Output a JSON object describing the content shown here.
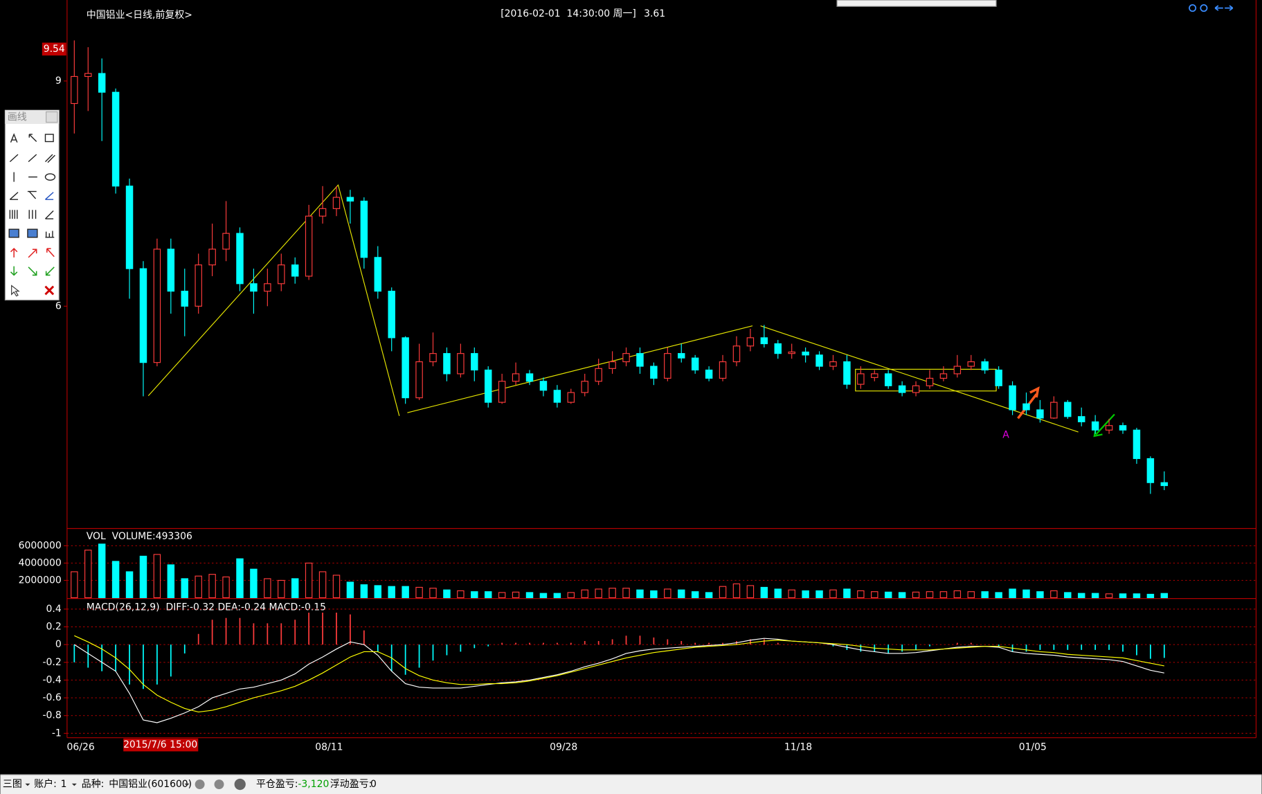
{
  "header": {
    "datetime": "[2016-02-01  14:30:00 周一]",
    "price": "3.61"
  },
  "toolbar": {
    "title": "画线"
  },
  "status_bar": {
    "layout": "三图",
    "account_label": "账户:",
    "account": "1",
    "symbol_label": "品种:",
    "symbol": "中国铝业(601600)",
    "closed_pnl_label": "平仓盈亏:",
    "closed_pnl": "-3,120",
    "floating_pnl_label": "浮动盈亏:",
    "floating_pnl": "0"
  },
  "chart_data": [
    {
      "type": "candlestick",
      "title": "中国铝业<日线,前复权>",
      "cursor_price_label": "9.54",
      "annotation": "A",
      "open": [
        8.7,
        9.06,
        9.1,
        8.85,
        7.6,
        6.5,
        5.25,
        6.76,
        6.2,
        6.0,
        6.55,
        6.76,
        6.97,
        6.3,
        6.2,
        6.3,
        6.55,
        6.4,
        7.2,
        7.3,
        7.45,
        7.4,
        6.65,
        6.2,
        5.58,
        4.78,
        5.26,
        5.37,
        5.1,
        5.37,
        5.15,
        4.72,
        5.0,
        5.1,
        5.0,
        4.88,
        4.72,
        4.85,
        5.0,
        5.17,
        5.26,
        5.37,
        5.2,
        5.04,
        5.37,
        5.31,
        5.15,
        5.04,
        5.26,
        5.47,
        5.58,
        5.5,
        5.37,
        5.39,
        5.35,
        5.2,
        5.26,
        4.96,
        5.05,
        5.1,
        4.94,
        4.85,
        4.94,
        5.04,
        5.1,
        5.2,
        5.26,
        5.15,
        4.94,
        4.7,
        4.62,
        4.51,
        4.72,
        4.53,
        4.46,
        4.35,
        4.41,
        4.35,
        3.97,
        3.65
      ],
      "high": [
        9.54,
        9.45,
        9.3,
        8.9,
        7.7,
        6.6,
        6.9,
        6.9,
        6.5,
        6.7,
        7.1,
        7.4,
        7.05,
        6.5,
        6.5,
        6.7,
        6.65,
        7.35,
        7.6,
        7.6,
        7.55,
        7.45,
        6.8,
        6.25,
        5.6,
        5.5,
        5.65,
        5.45,
        5.5,
        5.45,
        5.2,
        5.1,
        5.25,
        5.15,
        5.05,
        4.95,
        4.9,
        5.1,
        5.3,
        5.4,
        5.45,
        5.45,
        5.25,
        5.45,
        5.5,
        5.35,
        5.2,
        5.35,
        5.6,
        5.7,
        5.75,
        5.55,
        5.5,
        5.45,
        5.4,
        5.35,
        5.35,
        5.2,
        5.15,
        5.15,
        5.0,
        5.0,
        5.15,
        5.2,
        5.35,
        5.35,
        5.3,
        5.2,
        5.0,
        4.85,
        4.75,
        4.8,
        4.75,
        4.65,
        4.55,
        4.5,
        4.45,
        4.38,
        4.0,
        3.8
      ],
      "low": [
        8.3,
        8.6,
        8.2,
        7.5,
        6.1,
        4.8,
        5.2,
        5.9,
        5.6,
        5.9,
        6.4,
        6.6,
        6.2,
        5.9,
        6.0,
        6.2,
        6.3,
        6.35,
        7.1,
        7.2,
        7.1,
        6.5,
        6.1,
        5.4,
        4.7,
        4.75,
        5.2,
        5.0,
        5.05,
        5.0,
        4.65,
        4.7,
        4.95,
        4.95,
        4.8,
        4.65,
        4.7,
        4.8,
        4.95,
        5.1,
        5.2,
        5.1,
        4.95,
        5.0,
        5.25,
        5.1,
        5.0,
        5.0,
        5.2,
        5.4,
        5.45,
        5.3,
        5.3,
        5.25,
        5.15,
        5.15,
        4.9,
        4.9,
        5.0,
        4.9,
        4.8,
        4.8,
        4.9,
        5.0,
        5.05,
        5.15,
        5.1,
        4.9,
        4.55,
        4.55,
        4.45,
        4.5,
        4.5,
        4.4,
        4.3,
        4.3,
        4.3,
        3.9,
        3.5,
        3.55
      ],
      "close": [
        9.06,
        9.1,
        8.85,
        7.6,
        6.5,
        5.25,
        6.76,
        6.2,
        6.0,
        6.55,
        6.76,
        6.97,
        6.3,
        6.2,
        6.3,
        6.55,
        6.4,
        7.2,
        7.3,
        7.45,
        7.4,
        6.65,
        6.2,
        5.58,
        4.78,
        5.26,
        5.37,
        5.1,
        5.37,
        5.15,
        4.72,
        5.0,
        5.1,
        5.0,
        4.88,
        4.72,
        4.85,
        5.0,
        5.17,
        5.26,
        5.37,
        5.2,
        5.04,
        5.37,
        5.31,
        5.15,
        5.04,
        5.26,
        5.47,
        5.58,
        5.5,
        5.37,
        5.39,
        5.35,
        5.2,
        5.26,
        4.96,
        5.1,
        5.1,
        4.94,
        4.85,
        4.94,
        5.04,
        5.1,
        5.2,
        5.26,
        5.15,
        4.94,
        4.62,
        4.62,
        4.51,
        4.72,
        4.53,
        4.46,
        4.35,
        4.41,
        4.35,
        3.97,
        3.65,
        3.61
      ],
      "up_color": "#ff3c3c",
      "down_color": "#00ffff",
      "ylim": [
        3.06,
        9.95
      ],
      "yticks": [
        6,
        9
      ],
      "grid": false
    },
    {
      "type": "bar",
      "title": "VOL  VOLUME:493306",
      "values": [
        3000000,
        5500000,
        6200000,
        4200000,
        3000000,
        4800000,
        5000000,
        3800000,
        2200000,
        2500000,
        2700000,
        2400000,
        4500000,
        3300000,
        2200000,
        2000000,
        2200000,
        4000000,
        3000000,
        2600000,
        1800000,
        1500000,
        1400000,
        1300000,
        1300000,
        1200000,
        1100000,
        900000,
        800000,
        700000,
        700000,
        600000,
        650000,
        600000,
        500000,
        500000,
        600000,
        900000,
        1000000,
        1100000,
        1100000,
        900000,
        800000,
        1000000,
        900000,
        700000,
        600000,
        1300000,
        1600000,
        1400000,
        1200000,
        1000000,
        900000,
        800000,
        800000,
        900000,
        1000000,
        800000,
        700000,
        650000,
        600000,
        650000,
        700000,
        700000,
        800000,
        700000,
        700000,
        600000,
        1000000,
        900000,
        700000,
        800000,
        600000,
        500000,
        500000,
        450000,
        450000,
        450000,
        400000,
        493306
      ],
      "ylim": [
        0,
        7900000
      ],
      "yticks": [
        2000000,
        4000000,
        6000000
      ],
      "grid": true
    },
    {
      "type": "macd",
      "title": "MACD(26,12,9)  DIFF:-0.32 DEA:-0.24 MACD:-0.15",
      "cursor_date_label": "2015/7/6 15:00",
      "categories": [
        "06/26",
        null,
        null,
        null,
        null,
        null,
        null,
        null,
        null,
        null,
        null,
        null,
        null,
        null,
        null,
        null,
        null,
        null,
        "08/11",
        null,
        null,
        null,
        null,
        null,
        null,
        null,
        null,
        null,
        null,
        null,
        null,
        null,
        null,
        null,
        null,
        "09/28",
        null,
        null,
        null,
        null,
        null,
        null,
        null,
        null,
        null,
        null,
        null,
        null,
        null,
        null,
        null,
        null,
        "11/18",
        null,
        null,
        null,
        null,
        null,
        null,
        null,
        null,
        null,
        null,
        null,
        null,
        null,
        null,
        null,
        null,
        "01/05",
        null,
        null,
        null,
        null,
        null,
        null,
        null,
        null,
        null,
        null
      ],
      "series": [
        {
          "color": "#ffffff",
          "values": [
            0.0,
            -0.1,
            -0.2,
            -0.3,
            -0.55,
            -0.85,
            -0.88,
            -0.83,
            -0.77,
            -0.7,
            -0.6,
            -0.55,
            -0.5,
            -0.48,
            -0.44,
            -0.4,
            -0.33,
            -0.22,
            -0.14,
            -0.05,
            0.03,
            0.0,
            -0.12,
            -0.3,
            -0.44,
            -0.48,
            -0.49,
            -0.49,
            -0.49,
            -0.47,
            -0.45,
            -0.43,
            -0.42,
            -0.4,
            -0.37,
            -0.34,
            -0.3,
            -0.25,
            -0.21,
            -0.16,
            -0.1,
            -0.07,
            -0.05,
            -0.04,
            -0.03,
            -0.02,
            -0.01,
            0.0,
            0.02,
            0.05,
            0.07,
            0.06,
            0.04,
            0.03,
            0.02,
            0.0,
            -0.03,
            -0.06,
            -0.08,
            -0.1,
            -0.1,
            -0.09,
            -0.07,
            -0.05,
            -0.03,
            -0.02,
            -0.02,
            -0.03,
            -0.08,
            -0.1,
            -0.11,
            -0.12,
            -0.14,
            -0.15,
            -0.16,
            -0.17,
            -0.19,
            -0.24,
            -0.29,
            -0.32
          ]
        },
        {
          "color": "#ffff00",
          "values": [
            0.1,
            0.03,
            -0.05,
            -0.15,
            -0.28,
            -0.45,
            -0.57,
            -0.65,
            -0.72,
            -0.76,
            -0.74,
            -0.7,
            -0.65,
            -0.6,
            -0.56,
            -0.52,
            -0.47,
            -0.4,
            -0.32,
            -0.23,
            -0.14,
            -0.08,
            -0.08,
            -0.15,
            -0.27,
            -0.35,
            -0.4,
            -0.43,
            -0.45,
            -0.45,
            -0.44,
            -0.44,
            -0.43,
            -0.41,
            -0.38,
            -0.35,
            -0.31,
            -0.27,
            -0.23,
            -0.19,
            -0.15,
            -0.12,
            -0.09,
            -0.07,
            -0.05,
            -0.03,
            -0.02,
            -0.01,
            0.0,
            0.02,
            0.04,
            0.05,
            0.04,
            0.03,
            0.02,
            0.01,
            0.0,
            -0.02,
            -0.04,
            -0.05,
            -0.06,
            -0.06,
            -0.06,
            -0.05,
            -0.04,
            -0.03,
            -0.02,
            -0.02,
            -0.04,
            -0.06,
            -0.08,
            -0.09,
            -0.11,
            -0.12,
            -0.13,
            -0.14,
            -0.15,
            -0.18,
            -0.21,
            -0.24
          ]
        }
      ],
      "histogram": {
        "up_color": "#ff3c3c",
        "down_color": "#00ffff",
        "values": [
          -0.2,
          -0.26,
          -0.3,
          -0.3,
          -0.45,
          -0.5,
          -0.45,
          -0.36,
          -0.1,
          0.12,
          0.28,
          0.3,
          0.3,
          0.24,
          0.24,
          0.24,
          0.28,
          0.36,
          0.36,
          0.36,
          0.34,
          0.16,
          -0.08,
          -0.3,
          -0.34,
          -0.26,
          -0.18,
          -0.12,
          -0.08,
          -0.04,
          -0.02,
          0.02,
          0.02,
          0.02,
          0.02,
          0.02,
          0.02,
          0.04,
          0.04,
          0.06,
          0.1,
          0.1,
          0.08,
          0.06,
          0.04,
          0.02,
          0.02,
          0.02,
          0.04,
          0.06,
          0.06,
          0.02,
          0,
          0,
          0,
          -0.02,
          -0.06,
          -0.08,
          -0.08,
          -0.1,
          -0.08,
          -0.06,
          -0.02,
          0,
          0.02,
          0.02,
          0,
          -0.02,
          -0.08,
          -0.08,
          -0.06,
          -0.06,
          -0.06,
          -0.06,
          -0.06,
          -0.06,
          -0.08,
          -0.12,
          -0.16,
          -0.15
        ]
      },
      "ylim": [
        -1.04,
        0.51
      ],
      "yticks": [
        0.4,
        0.2,
        0,
        -0.2,
        -0.4,
        -0.6,
        -0.8,
        -1
      ],
      "grid": true
    }
  ]
}
